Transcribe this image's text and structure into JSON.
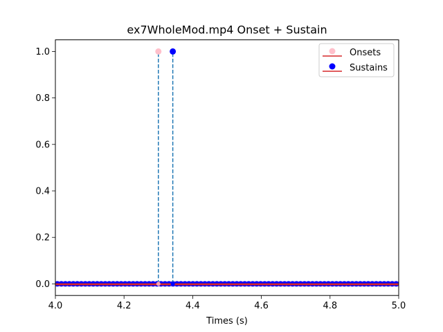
{
  "chart_data": {
    "type": "scatter",
    "title": "ex7WholeMod.mp4 Onset + Sustain",
    "xlabel": "Times (s)",
    "ylabel": "",
    "xlim": [
      4.0,
      5.0
    ],
    "ylim": [
      -0.05,
      1.05
    ],
    "x_ticks": [
      "4.0",
      "4.2",
      "4.4",
      "4.6",
      "4.8",
      "5.0"
    ],
    "y_ticks": [
      "0.0",
      "0.2",
      "0.4",
      "0.6",
      "0.8",
      "1.0"
    ],
    "legend_position": "upper right",
    "grid": false,
    "frame_step": 0.01161,
    "series": [
      {
        "name": "Onsets",
        "marker_color": "#ffc0cb",
        "stem_color": "#1f77b4",
        "baseline_color": "#d62728",
        "points": [
          {
            "x": 4.3,
            "y": 1.0
          }
        ]
      },
      {
        "name": "Sustains",
        "marker_color": "#0000ff",
        "stem_color": "#1f77b4",
        "baseline_color": "#d62728",
        "points": [
          {
            "x": 4.342,
            "y": 1.0
          }
        ]
      }
    ]
  }
}
